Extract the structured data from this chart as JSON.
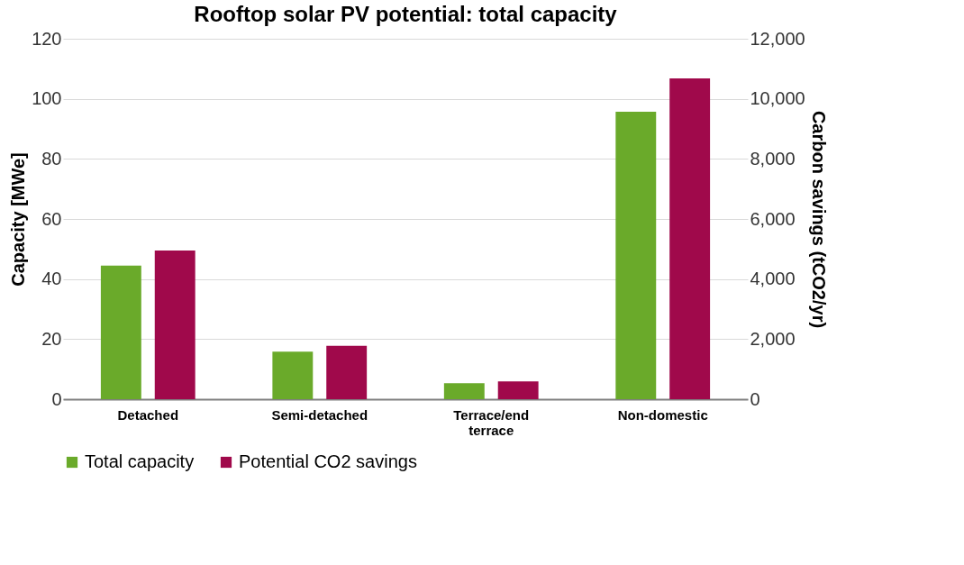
{
  "chart_data": {
    "type": "bar",
    "title": "Rooftop solar PV potential: total capacity",
    "categories": [
      "Detached",
      "Semi-detached",
      "Terrace/end terrace",
      "Non-domestic"
    ],
    "series": [
      {
        "name": "Total capacity",
        "color": "#6aaa2a",
        "values": [
          44.5,
          15.8,
          5.3,
          95.7
        ]
      },
      {
        "name": "Potential CO2 savings",
        "color": "#a0094b",
        "values": [
          4950,
          1780,
          590,
          10680
        ],
        "axis": "y2"
      }
    ],
    "ylabel": "Capacity [MWe]",
    "y2label": "Carbon savings (tCO2/yr)",
    "ylim": [
      0,
      120
    ],
    "yticks": [
      0,
      20,
      40,
      60,
      80,
      100,
      120
    ],
    "y2lim": [
      0,
      12000
    ],
    "y2ticks": [
      0,
      {
        "value": 2000,
        "label": "2,000"
      },
      {
        "value": 4000,
        "label": "4,000"
      },
      {
        "value": 6000,
        "label": "6,000"
      },
      {
        "value": 8000,
        "label": "8,000"
      },
      {
        "value": 10000,
        "label": "10,000"
      },
      {
        "value": 12000,
        "label": "12,000"
      }
    ],
    "grid": "y",
    "legend": "bottom"
  }
}
